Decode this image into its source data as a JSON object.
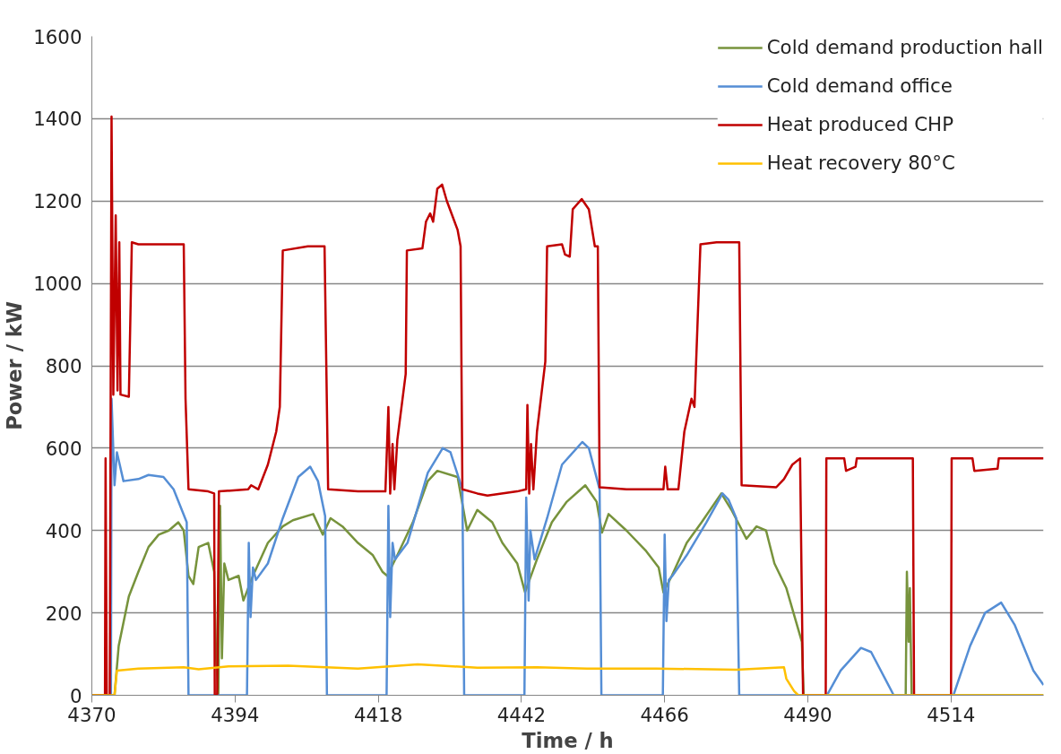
{
  "chart_data": {
    "type": "line",
    "xlabel": "Time / h",
    "ylabel": "Power / kW",
    "xlim": [
      4370,
      4529.5
    ],
    "xticks": [
      4370,
      4394,
      4418,
      4442,
      4466,
      4490,
      4514
    ],
    "ylim": [
      0,
      1600
    ],
    "yticks": [
      0,
      200,
      400,
      600,
      800,
      1000,
      1200,
      1400,
      1600
    ],
    "grid": "y",
    "legend": "top right",
    "marker": "none",
    "line_style": "solid",
    "series": [
      {
        "name": "Cold demand production hall",
        "color": "#77933c",
        "x": [
          4370,
          4373.8,
          4374.5,
          4376.2,
          4377.8,
          4379.5,
          4381.2,
          4382.9,
          4384.5,
          4385.4,
          4386.2,
          4387,
          4387.9,
          4389.5,
          4390.5,
          4390.8,
          4391.2,
          4391.5,
          4391.8,
          4392.2,
          4392.9,
          4394.6,
          4395.4,
          4397,
          4399.5,
          4402,
          4403.7,
          4407.1,
          4408.7,
          4410,
          4412,
          4414.6,
          4417.1,
          4418.7,
          4419.5,
          4421.2,
          4423.8,
          4426.3,
          4427.9,
          4431.3,
          4432.9,
          4434.6,
          4437.1,
          4438.8,
          4441.3,
          4442.6,
          4444.6,
          4447.1,
          4449.6,
          4452.7,
          4454.6,
          4455.5,
          4456.6,
          4459.6,
          4462.9,
          4465,
          4465.8,
          4467.2,
          4469.7,
          4472.2,
          4475.5,
          4477.2,
          4479.7,
          4481.4,
          4483,
          4484.4,
          4486.4,
          4488,
          4489,
          4489.3,
          4506.4,
          4506.6,
          4506.9,
          4507.1,
          4507.4,
          4529.5
        ],
        "values": [
          0,
          0,
          120,
          240,
          300,
          360,
          390,
          400,
          420,
          400,
          290,
          270,
          360,
          370,
          300,
          100,
          0,
          460,
          90,
          320,
          280,
          290,
          230,
          290,
          370,
          410,
          425,
          440,
          390,
          430,
          410,
          370,
          340,
          300,
          290,
          340,
          420,
          520,
          545,
          530,
          400,
          450,
          420,
          370,
          320,
          250,
          330,
          420,
          470,
          510,
          470,
          395,
          440,
          400,
          350,
          310,
          250,
          290,
          370,
          420,
          490,
          450,
          380,
          410,
          400,
          320,
          260,
          180,
          130,
          0,
          0,
          300,
          130,
          260,
          0,
          0
        ]
      },
      {
        "name": "Cold demand office",
        "color": "#558ed5",
        "x": [
          4370,
          4373.2,
          4373.3,
          4373.8,
          4374.2,
          4375.3,
          4377.8,
          4379.5,
          4382,
          4383.7,
          4385.9,
          4386.2,
          4396,
          4396.3,
          4396.6,
          4397,
          4397.5,
          4399.5,
          4402,
          4404.6,
          4406.6,
          4407.9,
          4409.1,
          4409.4,
          4419.4,
          4419.7,
          4420,
          4420.4,
          4420.8,
          4422.9,
          4426.3,
          4428.8,
          4430.1,
          4432.1,
          4432.4,
          4442.5,
          4442.8,
          4443.2,
          4443.5,
          4444.2,
          4446.3,
          4448.8,
          4452.2,
          4453.3,
          4455.1,
          4455.4,
          4465.7,
          4466,
          4466.3,
          4466.7,
          4467.3,
          4469.7,
          4473,
          4475.7,
          4476.7,
          4478,
          4478.5,
          4493.2,
          4495.5,
          4498.9,
          4500.6,
          4504.4,
          4514.4,
          4517.2,
          4519.7,
          4522.4,
          4524.7,
          4527.8,
          4529.5
        ],
        "values": [
          0,
          0,
          720,
          510,
          590,
          520,
          525,
          535,
          530,
          500,
          420,
          0,
          0,
          370,
          190,
          310,
          280,
          320,
          430,
          530,
          555,
          520,
          435,
          0,
          0,
          460,
          190,
          370,
          330,
          370,
          540,
          600,
          590,
          500,
          0,
          0,
          480,
          230,
          400,
          330,
          430,
          560,
          615,
          600,
          500,
          0,
          0,
          390,
          180,
          280,
          290,
          340,
          420,
          490,
          475,
          430,
          0,
          0,
          60,
          115,
          105,
          0,
          0,
          120,
          200,
          225,
          170,
          60,
          25
        ]
      },
      {
        "name": "Heat produced CHP",
        "color": "#c00000",
        "x": [
          4370,
          4372.2,
          4372.3,
          4372.5,
          4373,
          4373.3,
          4373.6,
          4374,
          4374.3,
          4374.6,
          4374.8,
          4376.2,
          4376.7,
          4377.8,
          4385.4,
          4385.7,
          4386.2,
          4389.5,
          4390.5,
          4390.6,
          4391,
          4391.3,
          4396.2,
          4396.7,
          4397.9,
          4399.5,
          4400.9,
          4401.5,
          4402,
          4406.2,
          4409,
          4409.6,
          4414.6,
          4419.2,
          4419.7,
          4420,
          4420.4,
          4420.7,
          4421.2,
          4422.6,
          4422.8,
          4425.4,
          4426,
          4426.7,
          4427.2,
          4427.9,
          4428.7,
          4429.5,
          4431.3,
          4431.8,
          4432.1,
          4434.6,
          4436.3,
          4441.3,
          4442.8,
          4443,
          4443.3,
          4443.6,
          4444,
          4444.6,
          4446,
          4446.3,
          4448.8,
          4449.3,
          4450.1,
          4450.6,
          4452.1,
          4453.3,
          4454.3,
          4454.8,
          4455.1,
          4459.6,
          4465.8,
          4466.1,
          4466.5,
          4468.3,
          4469.3,
          4470.5,
          4471,
          4472,
          4474.7,
          4478.5,
          4478.9,
          4484.7,
          4486,
          4487.4,
          4488.7,
          4489.2,
          4493,
          4493.1,
          4496.1,
          4496.4,
          4498,
          4498.2,
          4507.6,
          4507.8,
          4514,
          4514.1,
          4517.6,
          4517.9,
          4521.8,
          4522,
          4529.5
        ],
        "values": [
          0,
          0,
          575,
          0,
          0,
          1405,
          730,
          1165,
          740,
          1100,
          730,
          725,
          1100,
          1095,
          1095,
          720,
          500,
          495,
          490,
          0,
          0,
          495,
          500,
          510,
          500,
          560,
          640,
          700,
          1080,
          1090,
          1090,
          500,
          495,
          495,
          700,
          490,
          610,
          500,
          620,
          780,
          1080,
          1085,
          1150,
          1170,
          1150,
          1230,
          1240,
          1200,
          1130,
          1090,
          500,
          490,
          485,
          495,
          500,
          705,
          490,
          610,
          500,
          640,
          810,
          1090,
          1095,
          1070,
          1065,
          1180,
          1205,
          1180,
          1090,
          1090,
          505,
          500,
          500,
          555,
          500,
          500,
          640,
          720,
          700,
          1095,
          1100,
          1100,
          510,
          505,
          525,
          560,
          575,
          0,
          0,
          575,
          575,
          545,
          555,
          575,
          575,
          0,
          0,
          575,
          575,
          545,
          550,
          575,
          575
        ]
      },
      {
        "name": "Heat recovery 80°C",
        "color": "#ffc000",
        "x": [
          4370,
          4373.8,
          4374.2,
          4377.8,
          4385.4,
          4387.9,
          4392.9,
          4402.9,
          4414.6,
          4424.6,
          4434.6,
          4444.6,
          4453,
          4464.6,
          4478,
          4486,
          4486.4,
          4487.7,
          4488.4,
          4529.5
        ],
        "values": [
          0,
          0,
          60,
          65,
          68,
          63,
          70,
          72,
          65,
          75,
          67,
          68,
          65,
          65,
          62,
          68,
          40,
          10,
          0,
          0
        ]
      }
    ]
  }
}
